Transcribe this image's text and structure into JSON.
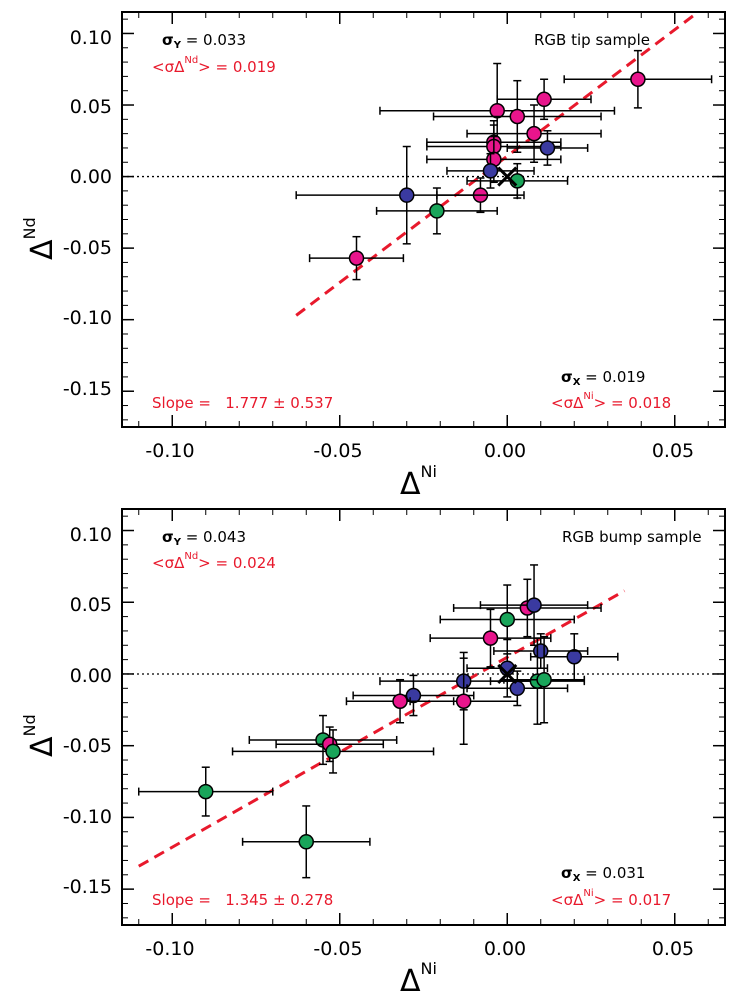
{
  "chart_data": [
    {
      "type": "scatter",
      "xlim": [
        -0.115,
        0.065
      ],
      "ylim": [
        -0.175,
        0.115
      ],
      "xticks": [
        "-0.10",
        "-0.05",
        "0.00",
        "0.05"
      ],
      "yticks": [
        "0.10",
        "0.05",
        "0.00",
        "-0.05",
        "-0.10",
        "-0.15"
      ],
      "xlabel": {
        "base": "Δ",
        "sup": "Ni"
      },
      "ylabel": {
        "base": "Δ",
        "sup": "Nd"
      },
      "sample_label": "RGB tip sample",
      "sigma_y": {
        "sym": "σ",
        "sub": "Y",
        "rest": " = 0.033"
      },
      "mean_err_y": {
        "pre": "<σΔ",
        "sup": "Nd",
        "post": "> = 0.019"
      },
      "sigma_x": {
        "sym": "σ",
        "sub": "X",
        "rest": " = 0.019"
      },
      "mean_err_x": {
        "pre": "<σΔ",
        "sup": "Ni",
        "post": "> = 0.018"
      },
      "slope_text": "Slope =   1.777 ± 0.537",
      "fit_line": {
        "x": [
          -0.063,
          0.057
        ],
        "y": [
          -0.097,
          0.115
        ]
      },
      "zero_line_y": 0.0,
      "mean_marker": {
        "x": 0.0,
        "y": 0.0
      },
      "colors": {
        "pink": "#e8158c",
        "blue": "#3a3aa0",
        "green": "#19a55a",
        "fit": "#e8192c"
      },
      "points": [
        {
          "x": 0.039,
          "y": 0.068,
          "xerr": 0.022,
          "yerr": 0.02,
          "c": "pink"
        },
        {
          "x": 0.011,
          "y": 0.054,
          "xerr": 0.014,
          "yerr": 0.014,
          "c": "pink"
        },
        {
          "x": -0.003,
          "y": 0.046,
          "xerr": 0.035,
          "yerr": 0.033,
          "c": "pink"
        },
        {
          "x": 0.003,
          "y": 0.042,
          "xerr": 0.025,
          "yerr": 0.025,
          "c": "pink"
        },
        {
          "x": 0.008,
          "y": 0.03,
          "xerr": 0.02,
          "yerr": 0.02,
          "c": "pink"
        },
        {
          "x": -0.004,
          "y": 0.024,
          "xerr": 0.02,
          "yerr": 0.015,
          "c": "pink"
        },
        {
          "x": -0.004,
          "y": 0.021,
          "xerr": 0.02,
          "yerr": 0.015,
          "c": "pink"
        },
        {
          "x": 0.012,
          "y": 0.02,
          "xerr": 0.012,
          "yerr": 0.012,
          "c": "blue"
        },
        {
          "x": -0.004,
          "y": 0.012,
          "xerr": 0.02,
          "yerr": 0.016,
          "c": "pink"
        },
        {
          "x": -0.005,
          "y": 0.004,
          "xerr": 0.013,
          "yerr": 0.012,
          "c": "blue"
        },
        {
          "x": 0.003,
          "y": -0.003,
          "xerr": 0.015,
          "yerr": 0.012,
          "c": "green"
        },
        {
          "x": -0.008,
          "y": -0.013,
          "xerr": 0.013,
          "yerr": 0.012,
          "c": "pink"
        },
        {
          "x": -0.03,
          "y": -0.013,
          "xerr": 0.033,
          "yerr": 0.034,
          "c": "blue"
        },
        {
          "x": -0.021,
          "y": -0.024,
          "xerr": 0.018,
          "yerr": 0.016,
          "c": "green"
        },
        {
          "x": -0.045,
          "y": -0.057,
          "xerr": 0.014,
          "yerr": 0.015,
          "c": "pink"
        }
      ]
    },
    {
      "type": "scatter",
      "xlim": [
        -0.115,
        0.065
      ],
      "ylim": [
        -0.175,
        0.115
      ],
      "xticks": [
        "-0.10",
        "-0.05",
        "0.00",
        "0.05"
      ],
      "yticks": [
        "0.10",
        "0.05",
        "0.00",
        "-0.05",
        "-0.10",
        "-0.15"
      ],
      "xlabel": {
        "base": "Δ",
        "sup": "Ni"
      },
      "ylabel": {
        "base": "Δ",
        "sup": "Nd"
      },
      "sample_label": "RGB bump sample",
      "sigma_y": {
        "sym": "σ",
        "sub": "Y",
        "rest": " = 0.043"
      },
      "mean_err_y": {
        "pre": "<σΔ",
        "sup": "Nd",
        "post": "> = 0.024"
      },
      "sigma_x": {
        "sym": "σ",
        "sub": "X",
        "rest": " = 0.031"
      },
      "mean_err_x": {
        "pre": "<σΔ",
        "sup": "Ni",
        "post": "> = 0.017"
      },
      "slope_text": "Slope =   1.345 ± 0.278",
      "fit_line": {
        "x": [
          -0.11,
          0.035
        ],
        "y": [
          -0.134,
          0.058
        ]
      },
      "zero_line_y": 0.0,
      "mean_marker": {
        "x": 0.0,
        "y": 0.0
      },
      "colors": {
        "pink": "#e8158c",
        "blue": "#3a3aa0",
        "green": "#19a55a",
        "fit": "#e8192c"
      },
      "points": [
        {
          "x": 0.006,
          "y": 0.046,
          "xerr": 0.022,
          "yerr": 0.02,
          "c": "pink"
        },
        {
          "x": 0.008,
          "y": 0.048,
          "xerr": 0.016,
          "yerr": 0.028,
          "c": "blue"
        },
        {
          "x": 0.0,
          "y": 0.038,
          "xerr": 0.02,
          "yerr": 0.024,
          "c": "green"
        },
        {
          "x": -0.005,
          "y": 0.025,
          "xerr": 0.018,
          "yerr": 0.02,
          "c": "pink"
        },
        {
          "x": 0.02,
          "y": 0.012,
          "xerr": 0.013,
          "yerr": 0.016,
          "c": "blue"
        },
        {
          "x": 0.01,
          "y": 0.016,
          "xerr": 0.014,
          "yerr": 0.012,
          "c": "blue"
        },
        {
          "x": 0.0,
          "y": 0.004,
          "xerr": 0.012,
          "yerr": 0.02,
          "c": "blue"
        },
        {
          "x": -0.013,
          "y": -0.005,
          "xerr": 0.025,
          "yerr": 0.02,
          "c": "blue"
        },
        {
          "x": 0.009,
          "y": -0.005,
          "xerr": 0.014,
          "yerr": 0.03,
          "c": "green"
        },
        {
          "x": 0.011,
          "y": -0.004,
          "xerr": 0.012,
          "yerr": 0.03,
          "c": "green"
        },
        {
          "x": 0.003,
          "y": -0.01,
          "xerr": 0.015,
          "yerr": 0.012,
          "c": "blue"
        },
        {
          "x": -0.028,
          "y": -0.015,
          "xerr": 0.018,
          "yerr": 0.014,
          "c": "blue"
        },
        {
          "x": -0.032,
          "y": -0.019,
          "xerr": 0.016,
          "yerr": 0.015,
          "c": "pink"
        },
        {
          "x": -0.013,
          "y": -0.019,
          "xerr": 0.016,
          "yerr": 0.03,
          "c": "pink"
        },
        {
          "x": -0.055,
          "y": -0.046,
          "xerr": 0.022,
          "yerr": 0.017,
          "c": "green"
        },
        {
          "x": -0.053,
          "y": -0.049,
          "xerr": 0.016,
          "yerr": 0.012,
          "c": "pink"
        },
        {
          "x": -0.052,
          "y": -0.054,
          "xerr": 0.03,
          "yerr": 0.015,
          "c": "green"
        },
        {
          "x": -0.09,
          "y": -0.082,
          "xerr": 0.02,
          "yerr": 0.017,
          "c": "green"
        },
        {
          "x": -0.06,
          "y": -0.117,
          "xerr": 0.019,
          "yerr": 0.025,
          "c": "green"
        }
      ]
    }
  ]
}
